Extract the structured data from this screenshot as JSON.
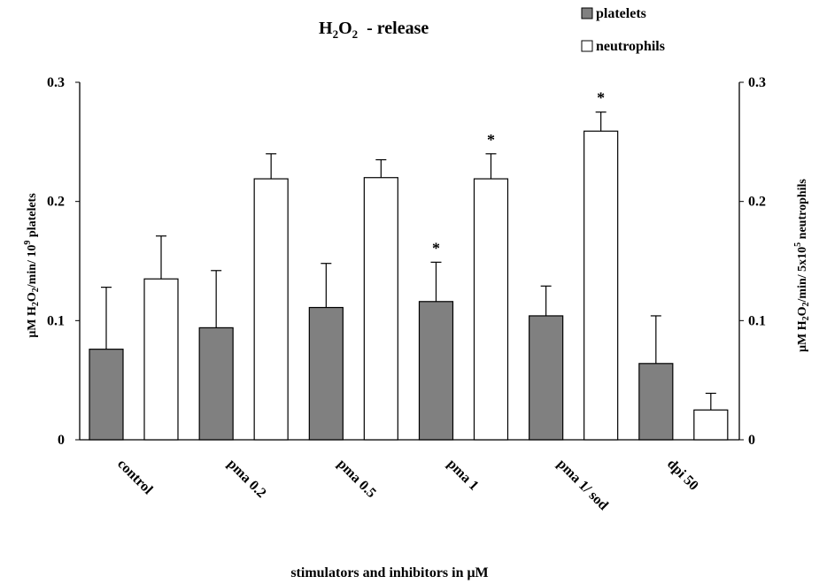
{
  "chart_data": {
    "type": "bar",
    "title": {
      "main": "H",
      "sub1": "2",
      "mid": "O",
      "sub2": "2",
      "rest": "  - release"
    },
    "categories": [
      "control",
      "pma 0.2",
      "pma 0.5",
      "pma 1",
      "pma 1/ sod",
      "dpi 50"
    ],
    "series": [
      {
        "name": "platelets",
        "axis": "left",
        "color": "#808080",
        "values": [
          0.076,
          0.094,
          0.111,
          0.116,
          0.104,
          0.064
        ],
        "errors": [
          0.052,
          0.048,
          0.037,
          0.033,
          0.025,
          0.04
        ],
        "significant": [
          false,
          false,
          false,
          true,
          false,
          false
        ]
      },
      {
        "name": "neutrophils",
        "axis": "right",
        "color": "#ffffff",
        "values": [
          0.135,
          0.219,
          0.22,
          0.219,
          0.259,
          0.025
        ],
        "errors": [
          0.036,
          0.021,
          0.015,
          0.021,
          0.016,
          0.014
        ],
        "significant": [
          false,
          false,
          false,
          true,
          true,
          false
        ]
      }
    ],
    "significance_marker": "*",
    "ylim": [
      0,
      0.3
    ],
    "yticks": [
      {
        "v": 0,
        "label": "0"
      },
      {
        "v": 0.1,
        "label": "0.1"
      },
      {
        "v": 0.2,
        "label": "0.2"
      },
      {
        "v": 0.3,
        "label": "0.3"
      }
    ],
    "xlabel": "stimulators and inhibitors in μM",
    "ylabel_left": {
      "a": "μM H",
      "b": "2",
      "c": "O",
      "d": "2",
      "e": "/min/ 10",
      "f": "9",
      "g": " platelets"
    },
    "ylabel_right": {
      "a": "μM H",
      "b": "2",
      "c": "O",
      "d": "2",
      "e": "/min/ 5x10",
      "f": "5",
      "g": " neutrophils"
    },
    "legend": "top-right",
    "grid": false
  }
}
